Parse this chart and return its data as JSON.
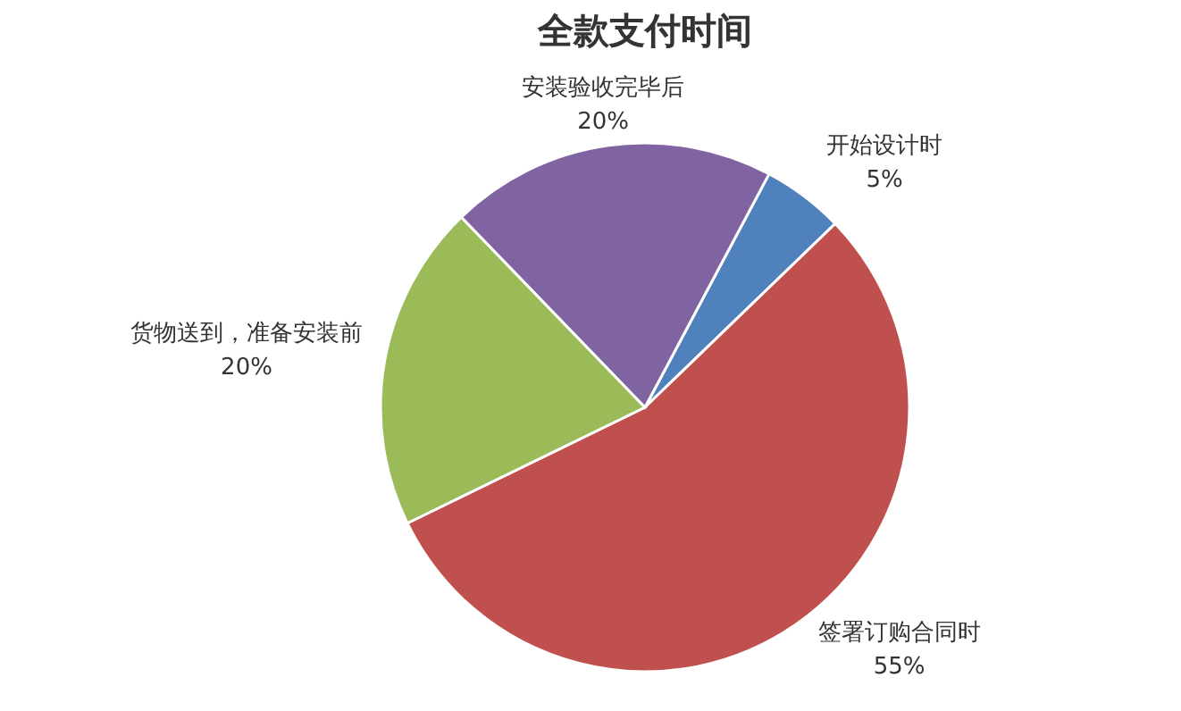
{
  "chart_data": {
    "type": "pie",
    "title": "全款支付时间",
    "categories": [
      "开始设计时",
      "签署订购合同时",
      "货物送到，准备安装前",
      "安装验收完毕后"
    ],
    "values": [
      5,
      55,
      20,
      20
    ],
    "colors": [
      "#4f81bd",
      "#c0504d",
      "#9bbb59",
      "#8064a2"
    ],
    "value_labels": [
      "5%",
      "55%",
      "20%",
      "20%"
    ]
  }
}
